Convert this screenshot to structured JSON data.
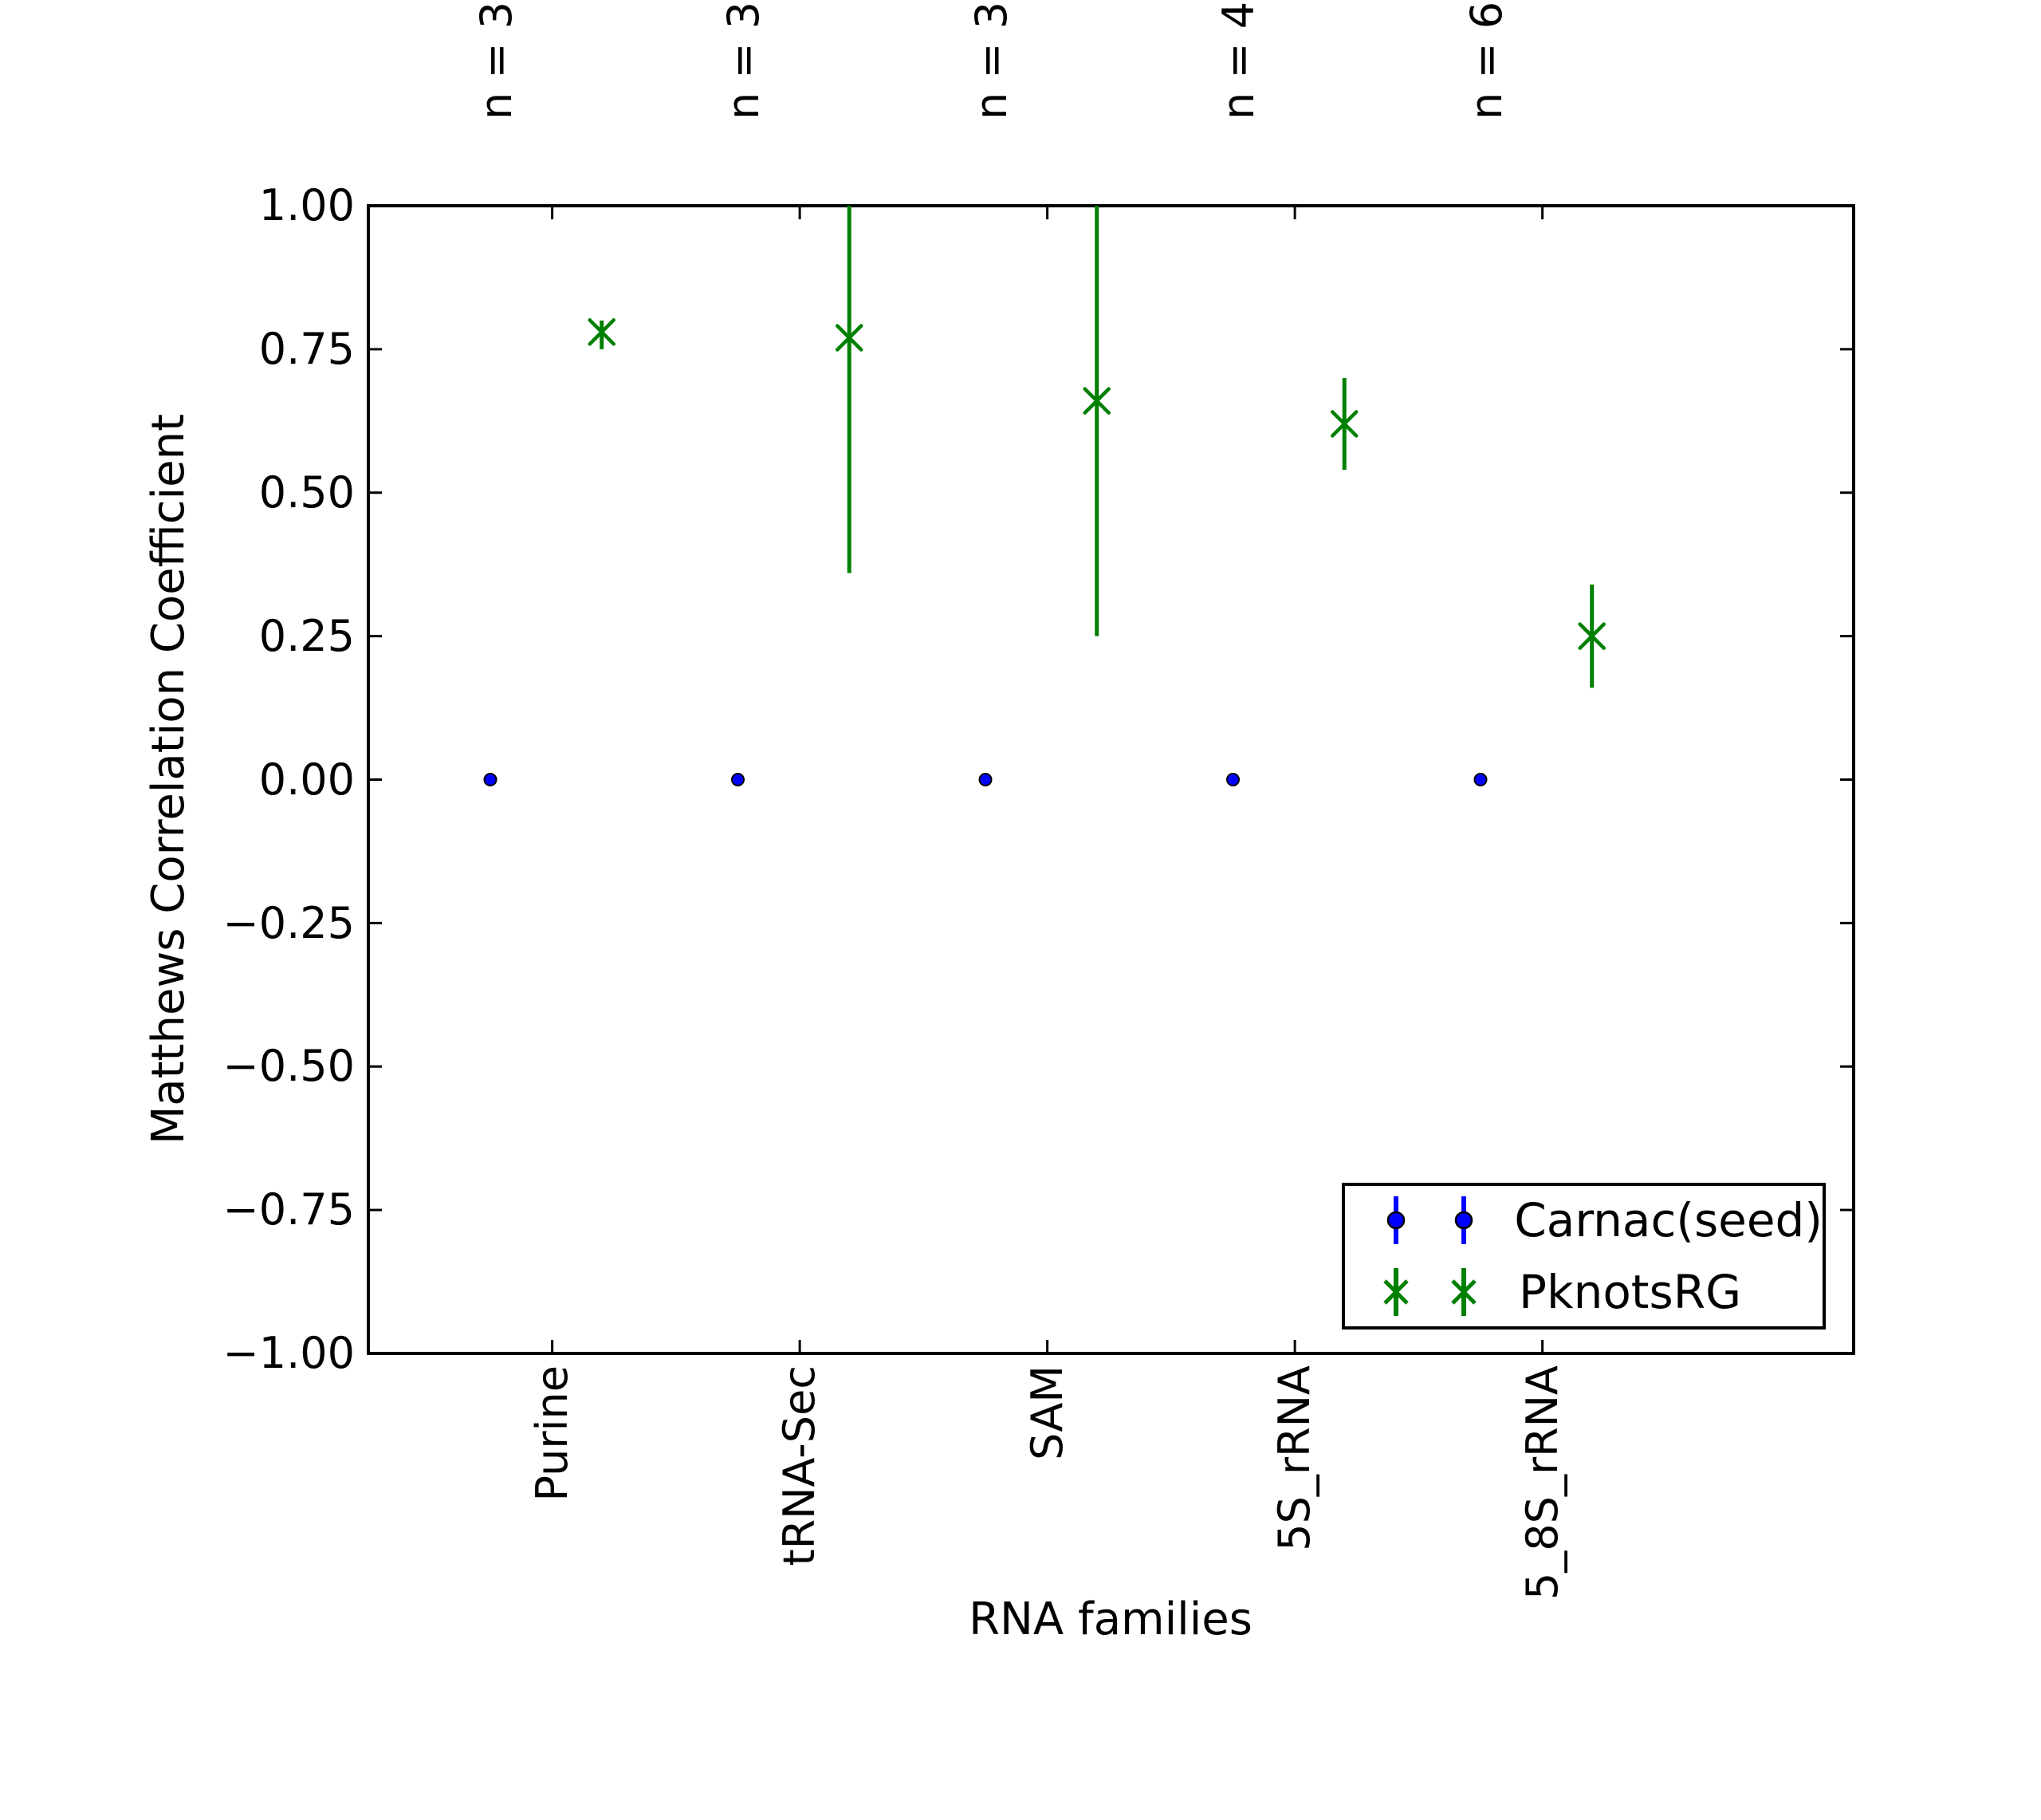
{
  "figure": {
    "background": "#ffffff",
    "accent_blue": "#0000ff",
    "accent_green": "#008000",
    "frame_color": "#000000"
  },
  "axes": {
    "xlabel": "RNA families",
    "ylabel": "Matthews Correlation Coefficient",
    "yticks": [
      "1.00",
      "0.75",
      "0.50",
      "0.25",
      "0.00",
      "−0.25",
      "−0.50",
      "−0.75",
      "−1.00"
    ],
    "xticklabels": [
      "Purine",
      "tRNA-Sec",
      "SAM",
      "5S_rRNA",
      "5_8S_rRNA"
    ],
    "top_labels": [
      "n = 3",
      "n = 3",
      "n = 3",
      "n = 4",
      "n = 6"
    ]
  },
  "legend": {
    "entries": [
      {
        "label": "Carnac(seed)",
        "color": "#0000ff",
        "marker": "dot"
      },
      {
        "label": "PknotsRG",
        "color": "#008000",
        "marker": "x"
      }
    ]
  },
  "chart_data": {
    "type": "scatter",
    "subtype": "errorbar",
    "title": "",
    "xlabel": "RNA families",
    "ylabel": "Matthews Correlation Coefficient",
    "categories": [
      "Purine",
      "tRNA-Sec",
      "SAM",
      "5S_rRNA",
      "5_8S_rRNA"
    ],
    "sample_sizes": [
      3,
      3,
      3,
      4,
      6
    ],
    "sample_size_labels": [
      "n = 3",
      "n = 3",
      "n = 3",
      "n = 4",
      "n = 6"
    ],
    "ylim": [
      -1.0,
      1.0
    ],
    "ytick_step": 0.25,
    "grid": false,
    "legend_position": "lower right",
    "series": [
      {
        "name": "Carnac(seed)",
        "marker": "dot",
        "color": "#0000ff",
        "x_offset_slots": 0.0,
        "values": [
          0.0,
          0.0,
          0.0,
          0.0,
          0.0
        ],
        "err_low": [
          0.0,
          0.0,
          0.0,
          0.0,
          0.0
        ],
        "err_high": [
          0.0,
          0.0,
          0.0,
          0.0,
          0.0
        ]
      },
      {
        "name": "PknotsRG",
        "marker": "x",
        "color": "#008000",
        "x_offset_slots": 0.45,
        "values": [
          0.78,
          0.77,
          0.66,
          0.62,
          0.25
        ],
        "err_low": [
          0.75,
          0.36,
          0.25,
          0.54,
          0.16
        ],
        "err_high": [
          0.8,
          1.19,
          1.08,
          0.7,
          0.34
        ]
      }
    ],
    "notes": "Upper error bars for tRNA-Sec and SAM extend beyond y=1.00 and are clipped at the axis top."
  }
}
